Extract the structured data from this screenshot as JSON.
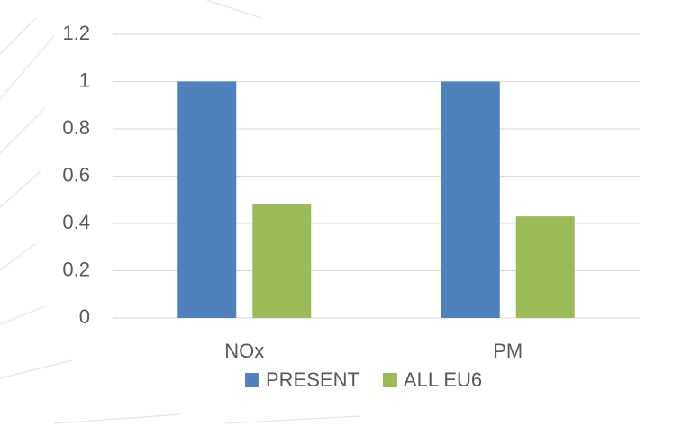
{
  "chart_data": {
    "type": "bar",
    "categories": [
      "NOx",
      "PM"
    ],
    "series": [
      {
        "name": "PRESENT",
        "color": "#4f81bd",
        "values": [
          1,
          1
        ]
      },
      {
        "name": "ALL EU6",
        "color": "#9bbb59",
        "values": [
          0.48,
          0.43
        ]
      }
    ],
    "ylim": [
      0,
      1.2
    ],
    "yticks": [
      0,
      0.2,
      0.4,
      0.6,
      0.8,
      1,
      1.2
    ],
    "grid": true,
    "legend": "bottom"
  }
}
